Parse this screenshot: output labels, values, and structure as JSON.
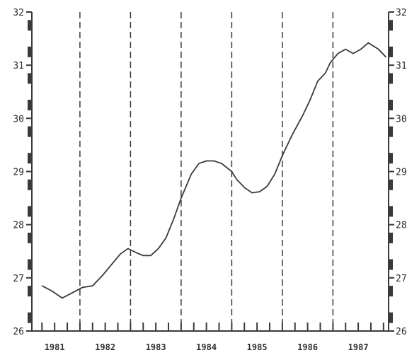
{
  "chart_data": {
    "type": "line",
    "title": "",
    "xlabel": "",
    "ylabel": "",
    "ylim": [
      26,
      32
    ],
    "y_ticks": [
      {
        "value": 32,
        "label": "32"
      },
      {
        "value": 31,
        "label": "31"
      },
      {
        "value": 30,
        "label": "30"
      },
      {
        "value": 29,
        "label": "29"
      },
      {
        "value": 28,
        "label": "28"
      },
      {
        "value": 27,
        "label": "27"
      },
      {
        "value": 26,
        "label": "26"
      }
    ],
    "x_range": [
      1980.55,
      1987.6
    ],
    "year_labels": [
      {
        "year": 1981,
        "label": "1981"
      },
      {
        "year": 1982,
        "label": "1982"
      },
      {
        "year": 1983,
        "label": "1983"
      },
      {
        "year": 1984,
        "label": "1984"
      },
      {
        "year": 1985,
        "label": "1985"
      },
      {
        "year": 1986,
        "label": "1986"
      },
      {
        "year": 1987,
        "label": "1987"
      }
    ],
    "year_boundaries": [
      1981.5,
      1982.5,
      1983.5,
      1984.5,
      1985.5,
      1986.5
    ],
    "grid": "vertical dashed lines at year boundaries",
    "series": [
      {
        "x": [
          1980.75,
          1980.95,
          1981.15,
          1981.35,
          1981.55,
          1981.75,
          1981.95,
          1982.15,
          1982.3,
          1982.45,
          1982.6,
          1982.75,
          1982.9,
          1983.05,
          1983.2,
          1983.35,
          1983.5,
          1983.7,
          1983.85,
          1984.0,
          1984.15,
          1984.3,
          1984.5,
          1984.6,
          1984.75,
          1984.9,
          1985.05,
          1985.2,
          1985.35,
          1985.5,
          1985.7,
          1985.9,
          1986.05,
          1986.2,
          1986.35,
          1986.45,
          1986.6,
          1986.75,
          1986.9,
          1987.05,
          1987.2,
          1987.4,
          1987.55
        ],
        "values": [
          26.85,
          26.75,
          26.62,
          26.72,
          26.82,
          26.85,
          27.05,
          27.28,
          27.45,
          27.55,
          27.48,
          27.42,
          27.42,
          27.55,
          27.75,
          28.1,
          28.5,
          28.95,
          29.15,
          29.2,
          29.2,
          29.15,
          29.0,
          28.85,
          28.7,
          28.6,
          28.62,
          28.72,
          28.95,
          29.3,
          29.7,
          30.05,
          30.35,
          30.7,
          30.85,
          31.05,
          31.22,
          31.3,
          31.22,
          31.3,
          31.42,
          31.3,
          31.15
        ]
      }
    ]
  }
}
